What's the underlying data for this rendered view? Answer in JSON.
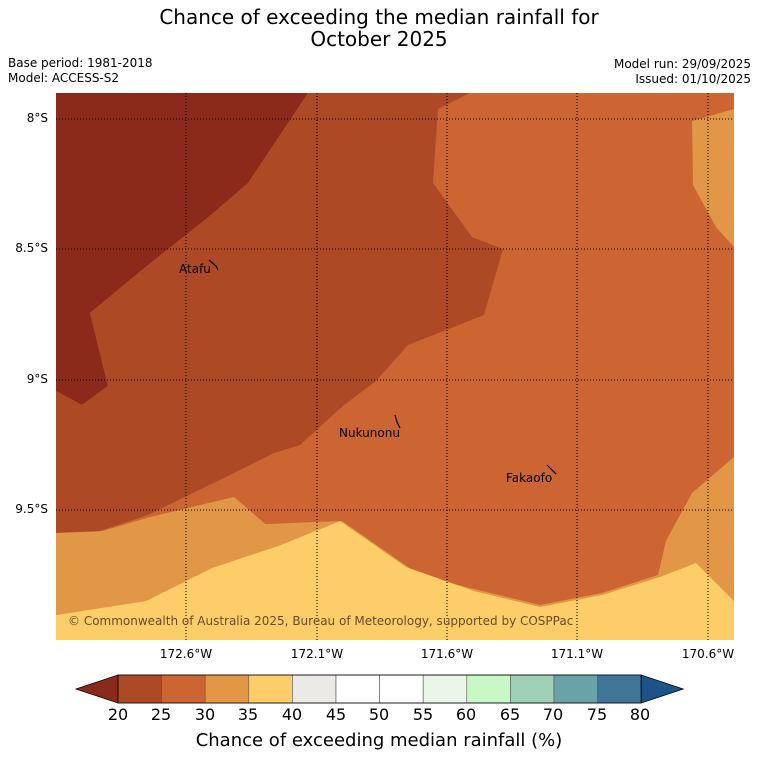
{
  "title": {
    "line1": "Chance of exceeding the median rainfall for",
    "line2": "October 2025"
  },
  "meta": {
    "base_period": "Base period: 1981-2018",
    "model": "Model: ACCESS-S2",
    "model_run": "Model run: 29/09/2025",
    "issued": "Issued: 01/10/2025"
  },
  "map": {
    "lat_labels": [
      "8°S",
      "8.5°S",
      "9°S",
      "9.5°S"
    ],
    "lon_labels": [
      "172.6°W",
      "172.1°W",
      "171.6°W",
      "171.1°W",
      "170.6°W"
    ],
    "places": [
      "Atafu",
      "Nukunonu",
      "Fakaofo"
    ],
    "copyright": "© Commonwealth of Australia 2025, Bureau of Meteorology, supported by COSPPac"
  },
  "colorbar": {
    "ticks": [
      "20",
      "25",
      "30",
      "35",
      "40",
      "45",
      "50",
      "55",
      "60",
      "65",
      "70",
      "75",
      "80"
    ],
    "colors": [
      "#8b2a1a",
      "#ad4a25",
      "#cd6532",
      "#e29747",
      "#fdcd69",
      "#eceae7",
      "#ffffff",
      "#ffffff",
      "#e9f5e6",
      "#c9f8c7",
      "#9dd0b5",
      "#6aa3a7",
      "#3f7697",
      "#1d528b"
    ],
    "title": "Chance of exceeding median rainfall (%)"
  }
}
